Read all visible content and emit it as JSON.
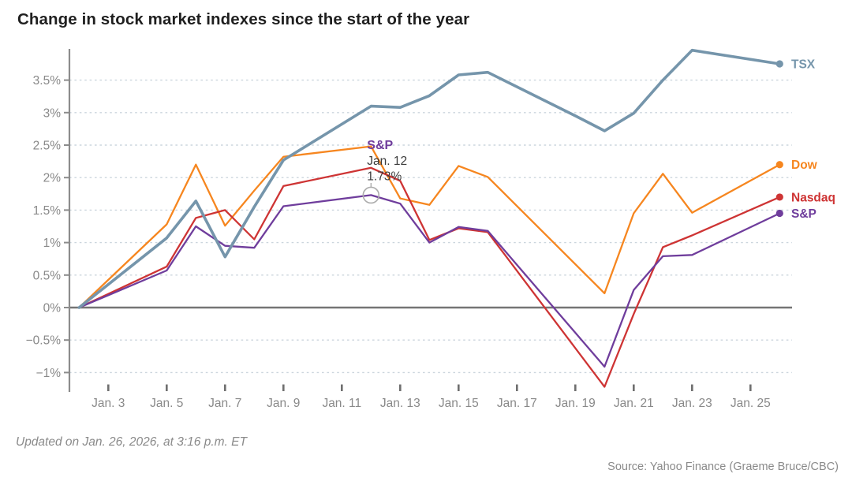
{
  "header": {
    "title": "Change in stock market indexes since the start of the year"
  },
  "footer": {
    "updated": "Updated on Jan. 26, 2026, at 3:16 p.m. ET",
    "source": "Source: Yahoo Finance (Graeme Bruce/CBC)"
  },
  "colors": {
    "tsx": "#7595AB",
    "dow": "#F6861F",
    "nasdaq": "#CE3434",
    "sp": "#6F3D9C",
    "gridline": "#CBD5DD",
    "zero_line": "#757575",
    "axis": "#8C8C8C",
    "tick": "#6F6F6F",
    "axis_label": "#898989",
    "tooltip_text": "#3B3B3B",
    "title_text": "#1F1F1F",
    "footer_text": "#8A8A8A"
  },
  "chart_data": {
    "type": "line",
    "title": "Change in stock market indexes since the start of the year",
    "xlabel": "",
    "ylabel": "",
    "grid": "horizontal dashed",
    "legend_position": "labels at right end of each line",
    "ylim": [
      -1.35,
      4.0
    ],
    "day_numbers": [
      2,
      5,
      6,
      7,
      8,
      9,
      12,
      13,
      14,
      15,
      16,
      19,
      20,
      21,
      22,
      23,
      26
    ],
    "dates": [
      "Jan. 2",
      "Jan. 5",
      "Jan. 6",
      "Jan. 7",
      "Jan. 8",
      "Jan. 9",
      "Jan. 12",
      "Jan. 13",
      "Jan. 14",
      "Jan. 15",
      "Jan. 16",
      "Jan. 19",
      "Jan. 20",
      "Jan. 21",
      "Jan. 22",
      "Jan. 23",
      "Jan. 26"
    ],
    "series": [
      {
        "name": "Dow",
        "color": "#F6861F",
        "stroke_width": 2.3,
        "values": [
          0,
          1.28,
          2.2,
          1.26,
          1.8,
          2.32,
          2.48,
          1.68,
          1.58,
          2.18,
          2.01,
          null,
          0.22,
          1.45,
          2.06,
          1.46,
          2.2
        ]
      },
      {
        "name": "Nasdaq",
        "color": "#CE3434",
        "stroke_width": 2.3,
        "values": [
          0,
          0.63,
          1.38,
          1.5,
          1.05,
          1.87,
          2.15,
          1.95,
          1.04,
          1.22,
          1.16,
          null,
          -1.22,
          -0.1,
          0.93,
          1.11,
          1.7
        ]
      },
      {
        "name": "S&P",
        "color": "#6F3D9C",
        "stroke_width": 2.3,
        "values": [
          0,
          0.57,
          1.25,
          0.95,
          0.92,
          1.56,
          1.73,
          1.6,
          1.0,
          1.24,
          1.18,
          null,
          -0.91,
          0.27,
          0.79,
          0.81,
          1.45
        ]
      },
      {
        "name": "TSX",
        "color": "#7595AB",
        "stroke_width": 3.6,
        "values": [
          0,
          1.07,
          1.64,
          0.78,
          1.55,
          2.27,
          3.1,
          3.08,
          3.26,
          3.58,
          3.62,
          2.95,
          2.72,
          2.99,
          3.5,
          3.96,
          3.75
        ]
      }
    ],
    "yticks": [
      3.5,
      3,
      2.5,
      2,
      1.5,
      1,
      0.5,
      0,
      -0.5,
      -1
    ],
    "ytick_labels": [
      "3.5%",
      "3%",
      "2.5%",
      "2%",
      "1.5%",
      "1%",
      "0.5%",
      "0%",
      "−0.5%",
      "−1%"
    ],
    "xtick_days": [
      3,
      5,
      7,
      9,
      11,
      13,
      15,
      17,
      19,
      21,
      23,
      25
    ],
    "xtick_labels": [
      "Jan. 3",
      "Jan. 5",
      "Jan. 7",
      "Jan. 9",
      "Jan. 11",
      "Jan. 13",
      "Jan. 15",
      "Jan. 17",
      "Jan. 19",
      "Jan. 21",
      "Jan. 23",
      "Jan. 25"
    ],
    "tooltip": {
      "series": "S&P",
      "date": "Jan. 12",
      "value": 1.73,
      "value_label": "1.73%",
      "day": 12
    }
  }
}
